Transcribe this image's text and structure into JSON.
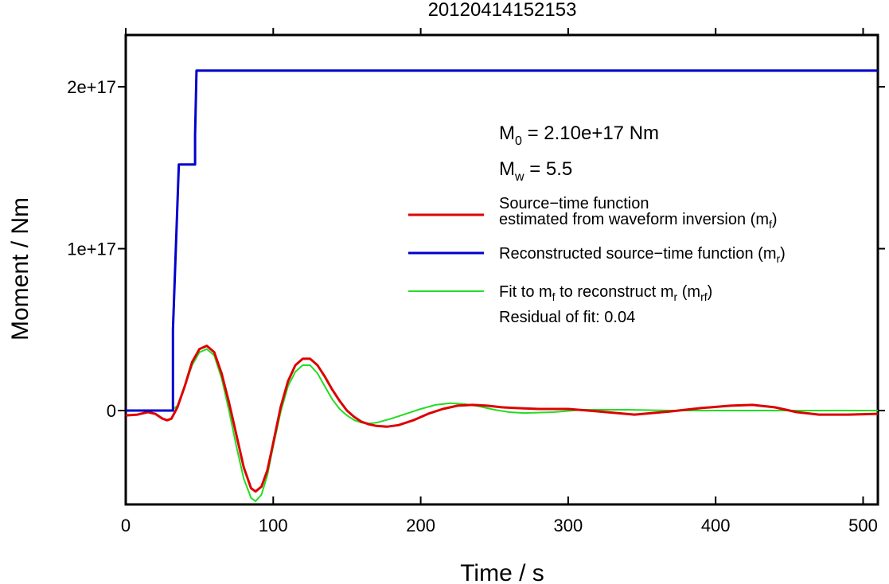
{
  "chart_data": {
    "type": "line",
    "title": "20120414152153",
    "xlabel": "Time / s",
    "ylabel": "Moment / Nm",
    "xlim": [
      0,
      510
    ],
    "ylim": [
      -5.8e+16,
      2.32e+17
    ],
    "x_ticks": [
      {
        "value": 0,
        "label": "0"
      },
      {
        "value": 100,
        "label": "100"
      },
      {
        "value": 200,
        "label": "200"
      },
      {
        "value": 300,
        "label": "300"
      },
      {
        "value": 400,
        "label": "400"
      },
      {
        "value": 500,
        "label": "500"
      }
    ],
    "y_ticks": [
      {
        "value": 0,
        "label": "0"
      },
      {
        "value": 1e+17,
        "label": "1e+17"
      },
      {
        "value": 2e+17,
        "label": "2e+17"
      }
    ],
    "grid": false,
    "legend_position": "right",
    "annotations": {
      "m0": {
        "main": "M",
        "sub": "0",
        "rest": " = 2.10e+17 Nm"
      },
      "mw": {
        "main": "M",
        "sub": "w",
        "rest": " = 5.5"
      },
      "residual": "Residual of fit: 0.04"
    },
    "series": [
      {
        "name": "Source−time function estimated from waveform inversion (mf)",
        "legend_lines": [
          "Source−time function",
          "estimated from waveform inversion (m",
          "f",
          ")"
        ],
        "color": "#dd0000",
        "x": [
          0,
          8,
          15,
          20,
          25,
          28,
          31,
          35,
          40,
          45,
          50,
          55,
          60,
          65,
          70,
          75,
          80,
          85,
          88,
          92,
          96,
          100,
          105,
          110,
          115,
          120,
          125,
          130,
          135,
          140,
          145,
          150,
          155,
          160,
          165,
          170,
          177,
          185,
          195,
          205,
          215,
          225,
          235,
          245,
          255,
          265,
          280,
          300,
          320,
          345,
          370,
          390,
          410,
          425,
          440,
          455,
          470,
          490,
          510
        ],
        "y": [
          -3000000000000000.0,
          -2500000000000000.0,
          -1000000000000000.0,
          -2000000000000000.0,
          -5000000000000000.0,
          -6000000000000000.0,
          -5000000000000000.0,
          2000000000000000.0,
          1.5e+16,
          3e+16,
          3.8e+16,
          4e+16,
          3.6e+16,
          2.3e+16,
          5000000000000000.0,
          -1.5e+16,
          -3.5e+16,
          -4.8e+16,
          -5e+16,
          -4.7e+16,
          -3.7e+16,
          -2e+16,
          2000000000000000.0,
          1.8e+16,
          2.8e+16,
          3.2e+16,
          3.2e+16,
          2.8e+16,
          2.1e+16,
          1.3e+16,
          6000000000000000.0,
          0.0,
          -4000000000000000.0,
          -7000000000000000.0,
          -8500000000000000.0,
          -9500000000000000.0,
          -1e+16,
          -9000000000000000.0,
          -6000000000000000.0,
          -2000000000000000.0,
          1000000000000000.0,
          3000000000000000.0,
          3500000000000000.0,
          3000000000000000.0,
          2000000000000000.0,
          1500000000000000.0,
          1000000000000000.0,
          1000000000000000.0,
          -500000000000000.0,
          -2500000000000000.0,
          -500000000000000.0,
          1500000000000000.0,
          3000000000000000.0,
          3500000000000000.0,
          2000000000000000.0,
          -1000000000000000.0,
          -2500000000000000.0,
          -2500000000000000.0,
          -2000000000000000.0
        ]
      },
      {
        "name": "Reconstructed source−time function (mr)",
        "legend_lines": [
          "Reconstructed source−time function (m",
          "r",
          ")"
        ],
        "color": "#0000cc",
        "step": true,
        "x": [
          0,
          32,
          32,
          36,
          36,
          47,
          47,
          48,
          48,
          510
        ],
        "y": [
          0,
          0,
          5e+16,
          1.52e+17,
          1.52e+17,
          1.52e+17,
          1.7e+17,
          2.1e+17,
          2.1e+17,
          2.1e+17
        ]
      },
      {
        "name": "Fit to mf to reconstruct mr (mrf)",
        "legend_lines": [
          "Fit to m",
          "f",
          " to reconstruct m",
          "r",
          " (m",
          "rf",
          ")"
        ],
        "color": "#22dd22",
        "x": [
          0,
          28,
          31,
          35,
          40,
          45,
          50,
          55,
          60,
          65,
          70,
          75,
          80,
          85,
          88,
          92,
          96,
          100,
          105,
          110,
          115,
          120,
          125,
          130,
          135,
          140,
          145,
          150,
          155,
          160,
          165,
          170,
          180,
          190,
          200,
          210,
          220,
          230,
          240,
          250,
          260,
          270,
          290,
          310,
          340,
          370,
          400,
          430,
          460,
          490,
          510
        ],
        "y": [
          0,
          0,
          0.0,
          3000000000000000.0,
          1.5e+16,
          2.8e+16,
          3.6e+16,
          3.8e+16,
          3.4e+16,
          2e+16,
          0.0,
          -2.2e+16,
          -4.2e+16,
          -5.4e+16,
          -5.6e+16,
          -5.2e+16,
          -4e+16,
          -2.2e+16,
          -1000000000000000.0,
          1.5e+16,
          2.4e+16,
          2.8e+16,
          2.8e+16,
          2.3e+16,
          1.5e+16,
          7000000000000000.0,
          1000000000000000.0,
          -3000000000000000.0,
          -6000000000000000.0,
          -7500000000000000.0,
          -8000000000000000.0,
          -7500000000000000.0,
          -5000000000000000.0,
          -2000000000000000.0,
          1000000000000000.0,
          3500000000000000.0,
          4500000000000000.0,
          4000000000000000.0,
          2500000000000000.0,
          500000000000000.0,
          -1000000000000000.0,
          -1500000000000000.0,
          -1000000000000000.0,
          500000000000000.0,
          500000000000000.0,
          0.0,
          0.0,
          0.0,
          0.0,
          0.0,
          0.0
        ]
      }
    ]
  }
}
